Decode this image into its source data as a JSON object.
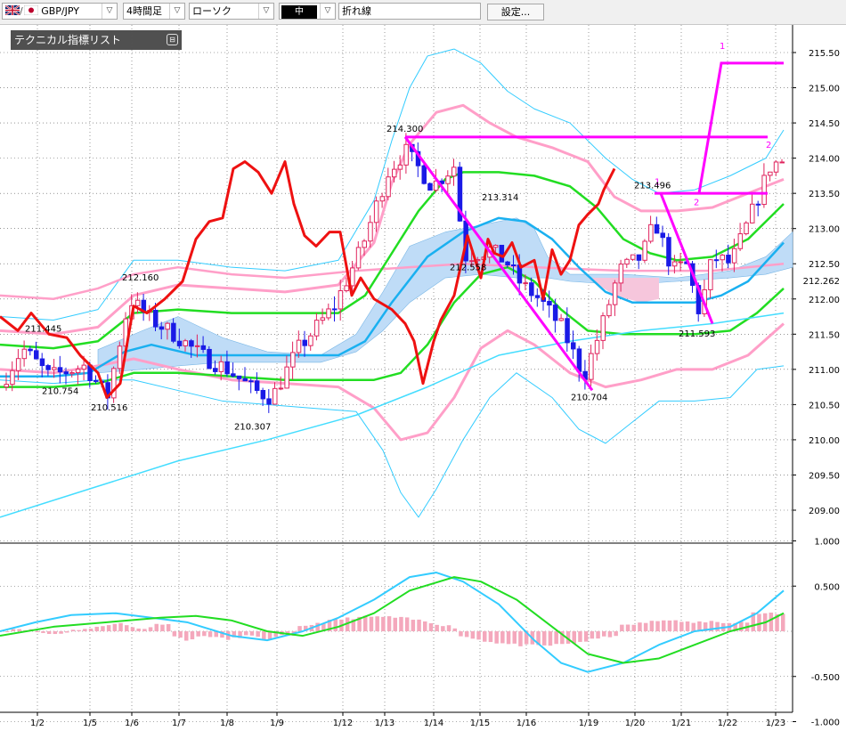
{
  "toolbar": {
    "pair": "GBP/JPY",
    "timeframe": "4時間足",
    "chart_style": "ローソク",
    "line_width": "中",
    "line_style": "折れ線",
    "settings": "設定..."
  },
  "indicator_list": {
    "title": "テクニカル指標リスト",
    "close_glyph": "⊟"
  },
  "colors": {
    "up_candle": "#e0245e",
    "down_candle": "#1a1ae6",
    "red_line": "#ee1111",
    "magenta": "#ff00ff",
    "green_line": "#22dd22",
    "cyan_line": "#33ccff",
    "pink_line": "#ff9fc8",
    "cloud": "#bfdcf7"
  },
  "chart_data": [
    {
      "type": "candlestick",
      "y_ticks": [
        "215.50",
        "215.00",
        "214.50",
        "214.00",
        "213.50",
        "213.00",
        "212.50",
        "212.00",
        "211.50",
        "211.00",
        "210.50",
        "210.00",
        "209.50",
        "209.00"
      ],
      "ylim": [
        208.6,
        215.9
      ],
      "last_price": "212.262",
      "x_ticks": [
        "1/2",
        "1/5",
        "1/6",
        "1/7",
        "1/8",
        "1/9",
        "1/12",
        "1/13",
        "1/14",
        "1/15",
        "1/16",
        "1/19",
        "1/20",
        "1/21",
        "1/22",
        "1/23"
      ],
      "grid": true,
      "annotations": [
        {
          "text": "211.445",
          "x": "1/2",
          "y": 211.445
        },
        {
          "text": "210.754",
          "x": "1/2",
          "y": 210.754
        },
        {
          "text": "210.516",
          "x": "1/5",
          "y": 210.516
        },
        {
          "text": "212.160",
          "x": "1/6",
          "y": 212.16
        },
        {
          "text": "210.307",
          "x": "1/8",
          "y": 210.307
        },
        {
          "text": "214.300",
          "x": "1/13",
          "y": 214.3
        },
        {
          "text": "213.314",
          "x": "1/15",
          "y": 213.314
        },
        {
          "text": "212.558",
          "x": "1/14",
          "y": 212.558
        },
        {
          "text": "210.704",
          "x": "1/19",
          "y": 210.704
        },
        {
          "text": "213.496",
          "x": "1/20",
          "y": 213.496
        },
        {
          "text": "211.593",
          "x": "1/21",
          "y": 211.593
        }
      ],
      "wave_labels": [
        "1",
        "2",
        "1",
        "2"
      ]
    },
    {
      "type": "line",
      "y_ticks": [
        "1.000",
        "0.500",
        "-0.500",
        "-1.000"
      ],
      "ylim": [
        -1.0,
        1.0
      ]
    }
  ]
}
